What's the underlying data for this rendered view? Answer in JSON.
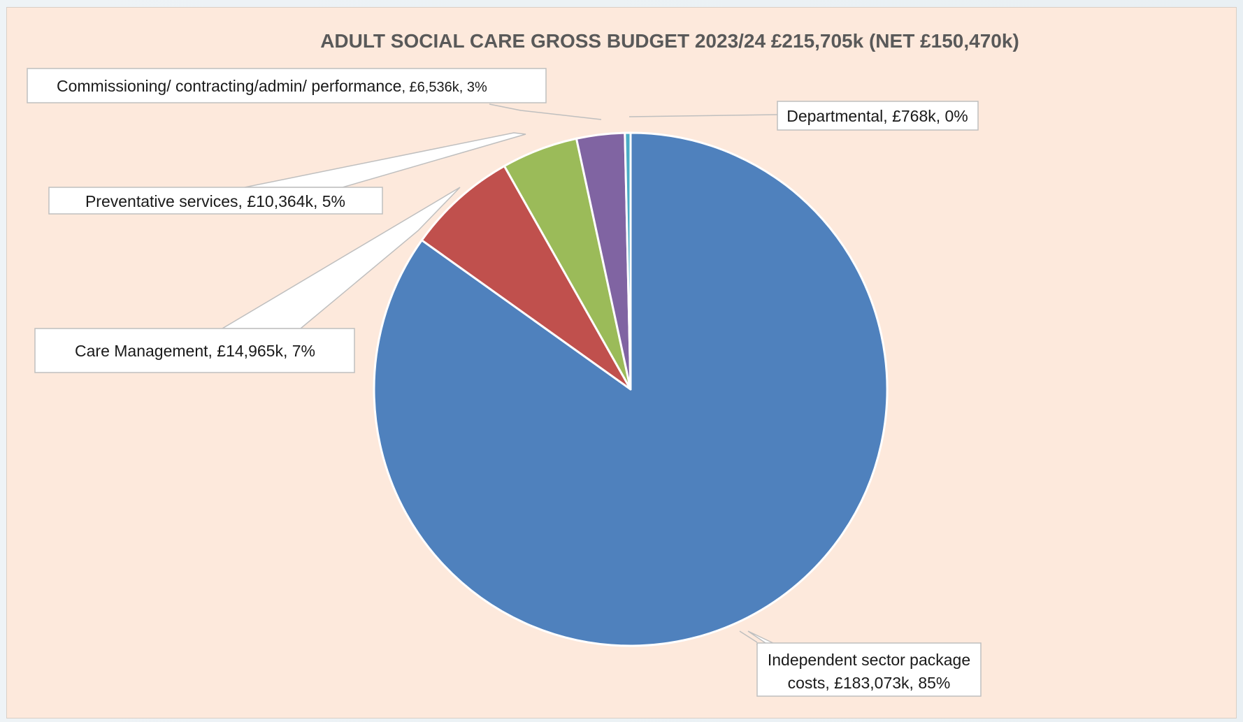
{
  "chart_data": {
    "type": "pie",
    "title": "ADULT SOCIAL CARE GROSS BUDGET 2023/24 £215,705k (NET £150,470k)",
    "slices": [
      {
        "name": "Independent sector package costs",
        "value": 183073,
        "value_label": "£183,073k",
        "percent_label": "85%",
        "color": "#4f81bd"
      },
      {
        "name": "Care Management",
        "value": 14965,
        "value_label": "£14,965k",
        "percent_label": "7%",
        "color": "#c0504d"
      },
      {
        "name": "Preventative services",
        "value": 10364,
        "value_label": "£10,364k",
        "percent_label": "5%",
        "color": "#9bbb59"
      },
      {
        "name": "Commissioning/ contracting/admin/ performance",
        "value": 6536,
        "value_label": "£6,536k",
        "percent_label": "3%",
        "color": "#8064a2"
      },
      {
        "name": "Departmental",
        "value": 768,
        "value_label": "£768k",
        "percent_label": "0%",
        "color": "#4bacc6"
      }
    ]
  },
  "labels": {
    "independent_line1": "Independent sector package",
    "independent_line2": "costs, £183,073k, 85%",
    "care_management": "Care Management, £14,965k, 7%",
    "preventative": "Preventative services, £10,364k, 5%",
    "commissioning_name": "Commissioning/ contracting/admin/ performance",
    "commissioning_values": ", £6,536k, 3%",
    "departmental": "Departmental, £768k, 0%"
  }
}
